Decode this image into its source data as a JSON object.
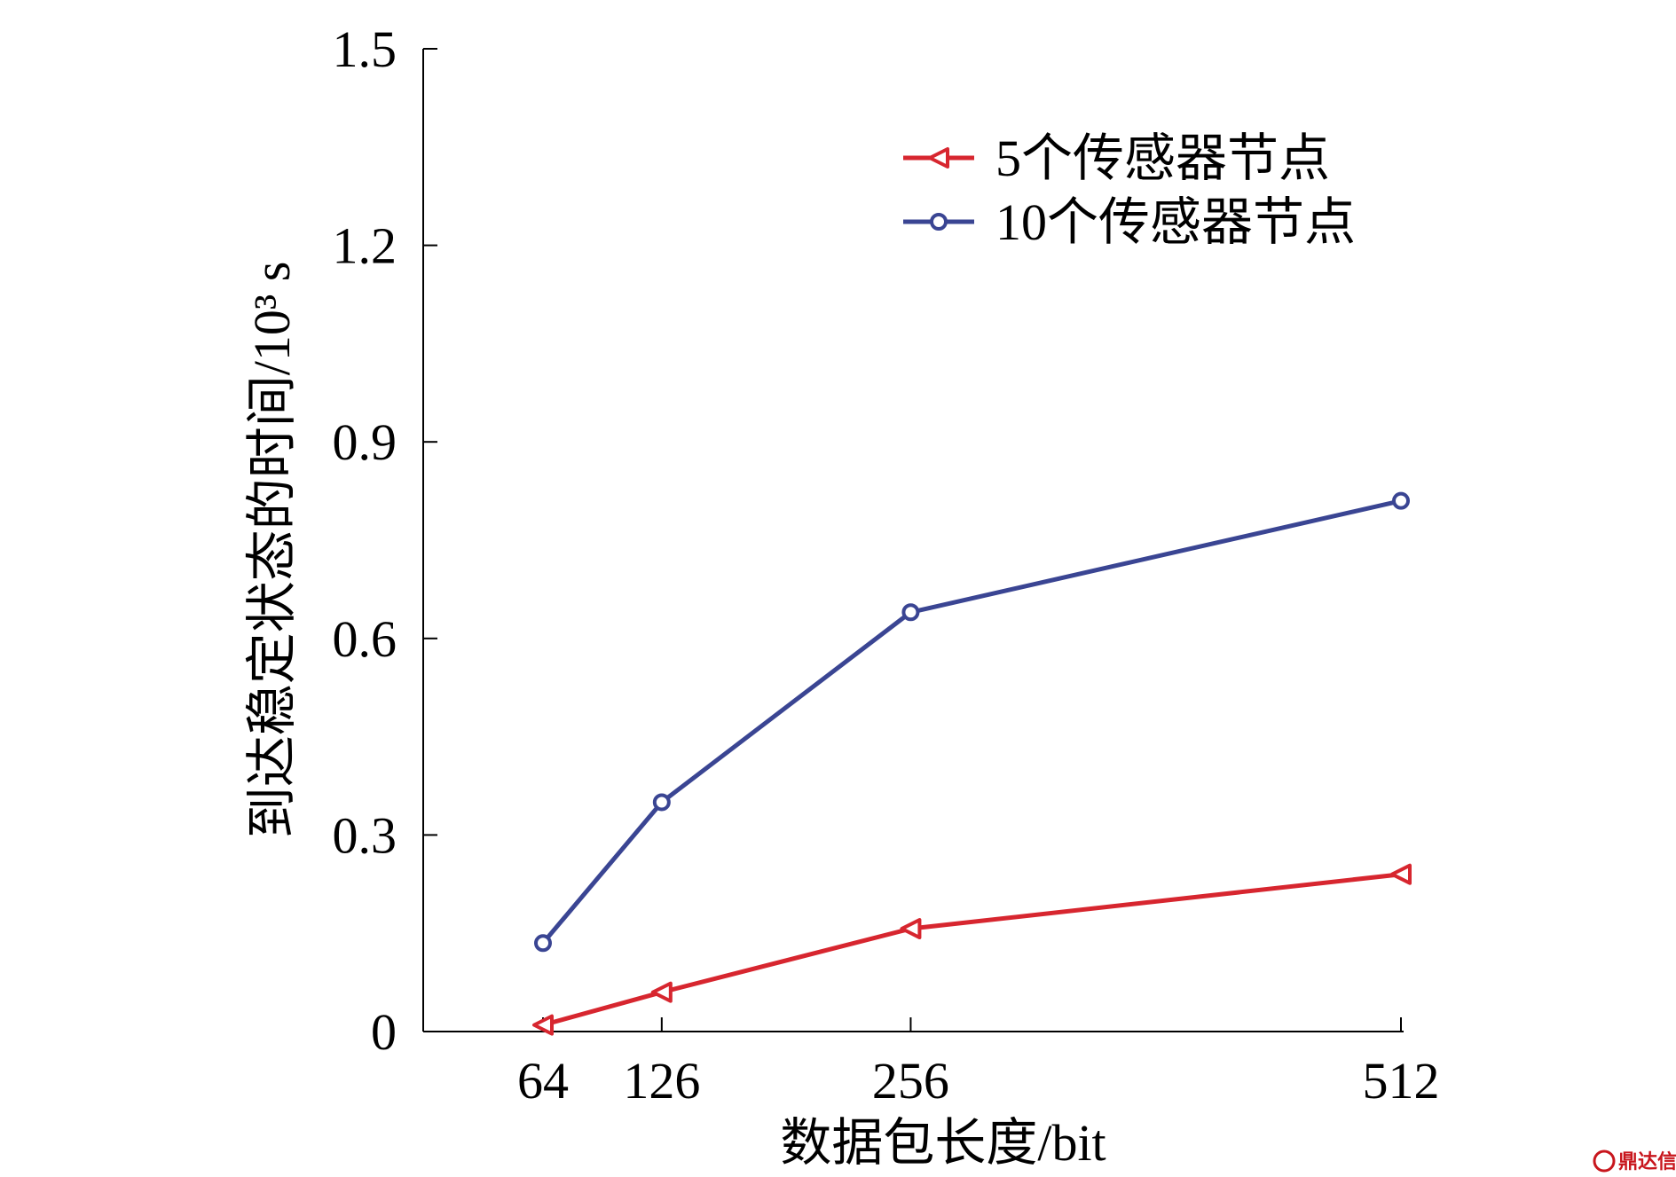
{
  "chart_data": {
    "type": "line",
    "x": [
      64,
      126,
      256,
      512
    ],
    "x_tick_labels": [
      "64",
      "126",
      "256",
      "512"
    ],
    "xlim": [
      0,
      512
    ],
    "ylim": [
      0,
      1.5
    ],
    "y_ticks": [
      0,
      0.3,
      0.6,
      0.9,
      1.2,
      1.5
    ],
    "y_tick_labels": [
      "0",
      "0.3",
      "0.6",
      "0.9",
      "1.2",
      "1.5"
    ],
    "xlabel": "数据包长度/bit",
    "ylabel": "到达稳定状态的时间/10³ s",
    "grid": false,
    "legend_position": "top-right",
    "series": [
      {
        "name": "5个传感器节点",
        "values": [
          0.01,
          0.06,
          0.157,
          0.24
        ],
        "color": "#d7262f",
        "marker": "triangle-left"
      },
      {
        "name": "10个传感器节点",
        "values": [
          0.135,
          0.35,
          0.64,
          0.81
        ],
        "color": "#3a4593",
        "marker": "circle"
      }
    ]
  },
  "watermark": {
    "text": "鼎达信",
    "color": "#c8161d"
  }
}
